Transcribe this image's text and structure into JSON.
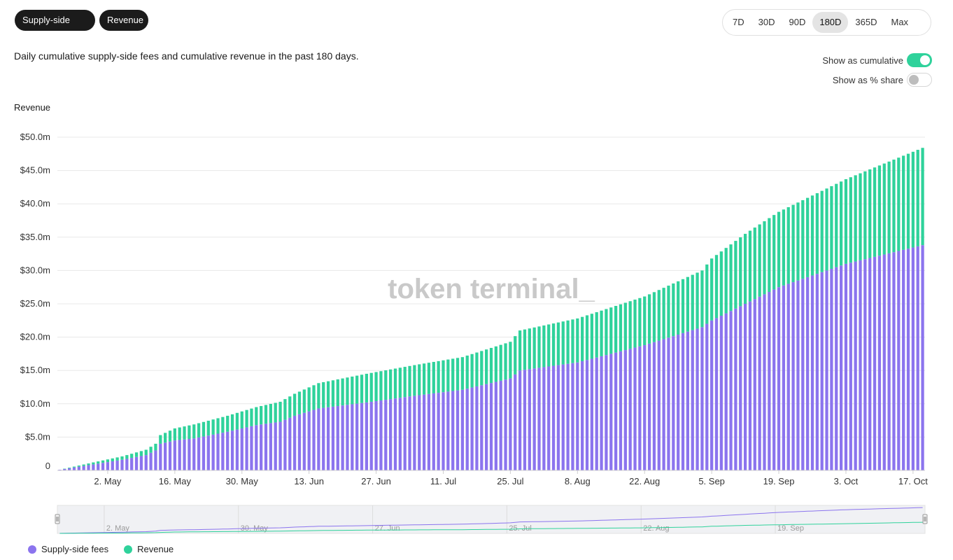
{
  "filters": {
    "chips": [
      {
        "label": "Supply-side fees"
      },
      {
        "label": "Revenue"
      }
    ],
    "ranges": [
      "7D",
      "30D",
      "90D",
      "180D",
      "365D",
      "Max"
    ],
    "active_range": "180D"
  },
  "description": "Daily cumulative supply-side fees and cumulative revenue in the past 180 days.",
  "toggles": {
    "cumulative_label": "Show as cumulative",
    "cumulative_on": true,
    "share_label": "Show as % share",
    "share_on": false
  },
  "watermark": "token terminal_",
  "colors": {
    "supply": "#8b74ee",
    "revenue": "#2fd29b",
    "grid": "#e8e8e8"
  },
  "chart_data": {
    "type": "bar",
    "stacked": true,
    "title": "",
    "ylabel": "Revenue",
    "ylim": [
      0,
      50
    ],
    "y_unit": "$m",
    "yticks": [
      0,
      5,
      10,
      15,
      20,
      25,
      30,
      35,
      40,
      45,
      50
    ],
    "ytick_labels": [
      "0",
      "$5.0m",
      "$10.0m",
      "$15.0m",
      "$20.0m",
      "$25.0m",
      "$30.0m",
      "$35.0m",
      "$40.0m",
      "$45.0m",
      "$50.0m"
    ],
    "x_start": "2024-04-22",
    "x_end": "2024-10-19",
    "xtick_dates": [
      "2024-05-02",
      "2024-05-16",
      "2024-05-30",
      "2024-06-13",
      "2024-06-27",
      "2024-07-11",
      "2024-07-25",
      "2024-08-08",
      "2024-08-22",
      "2024-09-05",
      "2024-09-19",
      "2024-10-03",
      "2024-10-17"
    ],
    "xtick_labels": [
      "2. May",
      "16. May",
      "30. May",
      "13. Jun",
      "27. Jun",
      "11. Jul",
      "25. Jul",
      "8. Aug",
      "22. Aug",
      "5. Sep",
      "19. Sep",
      "3. Oct",
      "17. Oct"
    ],
    "series": [
      {
        "name": "Supply-side fees",
        "points": [
          [
            "2024-04-22",
            0.1
          ],
          [
            "2024-04-29",
            0.9
          ],
          [
            "2024-05-05",
            1.6
          ],
          [
            "2024-05-10",
            2.3
          ],
          [
            "2024-05-12",
            3.0
          ],
          [
            "2024-05-13",
            4.0
          ],
          [
            "2024-05-16",
            4.5
          ],
          [
            "2024-05-20",
            4.8
          ],
          [
            "2024-05-27",
            5.8
          ],
          [
            "2024-06-02",
            6.8
          ],
          [
            "2024-06-07",
            7.3
          ],
          [
            "2024-06-10",
            8.2
          ],
          [
            "2024-06-15",
            9.3
          ],
          [
            "2024-06-25",
            10.2
          ],
          [
            "2024-07-05",
            11.2
          ],
          [
            "2024-07-15",
            12.1
          ],
          [
            "2024-07-25",
            13.8
          ],
          [
            "2024-07-27",
            15.0
          ],
          [
            "2024-08-08",
            16.2
          ],
          [
            "2024-08-22",
            18.8
          ],
          [
            "2024-09-03",
            21.5
          ],
          [
            "2024-09-05",
            22.5
          ],
          [
            "2024-09-12",
            25.0
          ],
          [
            "2024-09-19",
            27.5
          ],
          [
            "2024-10-03",
            31.0
          ],
          [
            "2024-10-19",
            33.8
          ]
        ]
      },
      {
        "name": "Revenue",
        "points": [
          [
            "2024-04-22",
            0.0
          ],
          [
            "2024-04-29",
            0.3
          ],
          [
            "2024-05-05",
            0.5
          ],
          [
            "2024-05-10",
            0.8
          ],
          [
            "2024-05-12",
            1.0
          ],
          [
            "2024-05-13",
            1.3
          ],
          [
            "2024-05-16",
            1.8
          ],
          [
            "2024-05-20",
            2.1
          ],
          [
            "2024-05-27",
            2.4
          ],
          [
            "2024-06-02",
            2.7
          ],
          [
            "2024-06-07",
            3.0
          ],
          [
            "2024-06-10",
            3.3
          ],
          [
            "2024-06-15",
            3.8
          ],
          [
            "2024-06-25",
            4.3
          ],
          [
            "2024-07-05",
            4.6
          ],
          [
            "2024-07-15",
            4.9
          ],
          [
            "2024-07-25",
            5.5
          ],
          [
            "2024-07-27",
            6.0
          ],
          [
            "2024-08-08",
            6.6
          ],
          [
            "2024-08-22",
            7.3
          ],
          [
            "2024-09-03",
            8.5
          ],
          [
            "2024-09-05",
            9.3
          ],
          [
            "2024-09-12",
            10.5
          ],
          [
            "2024-09-19",
            11.3
          ],
          [
            "2024-10-03",
            12.7
          ],
          [
            "2024-10-19",
            14.6
          ]
        ]
      }
    ],
    "navigator_labels": [
      "2. May",
      "30. May",
      "27. Jun",
      "25. Jul",
      "22. Aug",
      "19. Sep"
    ],
    "navigator_dates": [
      "2024-05-02",
      "2024-05-30",
      "2024-06-27",
      "2024-07-25",
      "2024-08-22",
      "2024-09-19"
    ],
    "legend": [
      "Supply-side fees",
      "Revenue"
    ],
    "legend_position": "bottom-left",
    "grid": true
  }
}
